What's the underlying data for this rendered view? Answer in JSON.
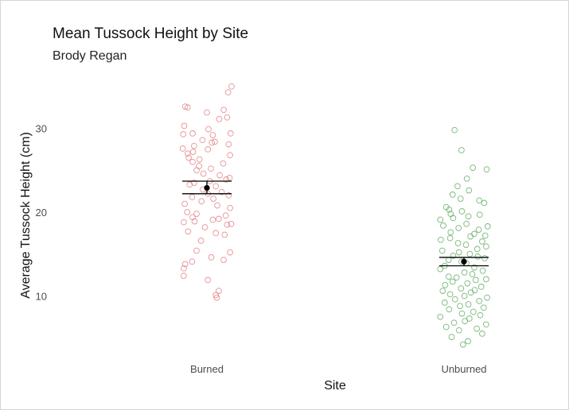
{
  "chart_data": {
    "type": "scatter",
    "title": "Mean Tussock Height by Site",
    "subtitle": "Brody Regan",
    "xlabel": "Site",
    "ylabel": "Average Tussock Height (cm)",
    "categories": [
      "Burned",
      "Unburned"
    ],
    "ylim": [
      3.5,
      36.5
    ],
    "yticks": [
      10,
      20,
      30
    ],
    "grid": false,
    "legend": "none",
    "colors": {
      "Burned": "#e07b7b",
      "Unburned": "#5aa65a",
      "summary": "#000000"
    },
    "series": [
      {
        "category": "Burned",
        "mean": 22.9,
        "ci": [
          22.2,
          23.7
        ],
        "values": [
          35.0,
          34.3,
          32.6,
          32.5,
          32.2,
          31.9,
          31.3,
          31.1,
          30.3,
          29.9,
          29.4,
          29.4,
          29.3,
          29.2,
          28.6,
          28.4,
          28.3,
          28.1,
          27.9,
          27.6,
          27.5,
          27.2,
          27.0,
          26.8,
          26.5,
          26.3,
          26.0,
          25.8,
          25.5,
          25.2,
          25.0,
          24.6,
          24.4,
          24.1,
          23.9,
          23.7,
          23.5,
          23.3,
          23.1,
          22.7,
          22.4,
          22.2,
          22.0,
          21.8,
          21.6,
          21.3,
          21.0,
          20.8,
          20.5,
          20.0,
          19.8,
          19.6,
          19.4,
          19.2,
          19.1,
          18.9,
          18.8,
          18.6,
          18.5,
          18.2,
          17.7,
          17.5,
          17.3,
          16.6,
          15.4,
          15.2,
          14.6,
          14.3,
          14.1,
          13.8,
          13.3,
          12.4,
          11.9,
          10.6,
          10.1,
          9.8
        ],
        "jitter": [
          0.5,
          0.43,
          -0.44,
          -0.39,
          0.34,
          0.0,
          0.41,
          0.25,
          -0.46,
          0.03,
          0.48,
          -0.29,
          -0.48,
          0.12,
          -0.09,
          0.16,
          0.1,
          0.44,
          -0.26,
          -0.49,
          0.02,
          -0.28,
          -0.39,
          0.47,
          -0.37,
          -0.15,
          -0.29,
          0.33,
          -0.16,
          0.08,
          -0.21,
          -0.07,
          0.26,
          0.46,
          0.39,
          0.06,
          -0.26,
          -0.35,
          0.18,
          -0.08,
          0.3,
          0.02,
          0.44,
          -0.3,
          0.13,
          -0.11,
          -0.45,
          0.21,
          0.47,
          -0.4,
          -0.21,
          0.38,
          -0.29,
          0.24,
          0.12,
          -0.25,
          -0.47,
          0.49,
          0.41,
          -0.04,
          -0.38,
          0.18,
          0.36,
          -0.12,
          -0.21,
          0.47,
          0.09,
          0.34,
          -0.3,
          -0.44,
          -0.47,
          -0.47,
          0.02,
          0.24,
          0.18,
          0.2
        ]
      },
      {
        "category": "Unburned",
        "mean": 14.1,
        "ci": [
          13.6,
          14.6
        ],
        "values": [
          29.8,
          27.4,
          25.3,
          25.1,
          24.0,
          23.1,
          22.6,
          22.1,
          21.6,
          21.4,
          21.1,
          20.6,
          20.3,
          20.1,
          19.8,
          19.7,
          19.5,
          19.3,
          19.1,
          18.6,
          18.4,
          18.3,
          18.1,
          17.9,
          17.6,
          17.4,
          17.2,
          17.1,
          16.9,
          16.7,
          16.5,
          16.3,
          16.1,
          15.9,
          15.6,
          15.4,
          15.2,
          15.0,
          14.8,
          14.7,
          14.5,
          14.3,
          14.1,
          13.9,
          13.6,
          13.4,
          13.2,
          13.0,
          12.8,
          12.6,
          12.3,
          12.2,
          12.0,
          11.9,
          11.7,
          11.5,
          11.3,
          11.1,
          10.9,
          10.7,
          10.6,
          10.4,
          10.2,
          10.0,
          9.8,
          9.6,
          9.4,
          9.2,
          9.0,
          8.8,
          8.6,
          8.4,
          8.1,
          7.9,
          7.7,
          7.5,
          7.3,
          7.0,
          6.8,
          6.6,
          6.3,
          6.1,
          5.9,
          5.5,
          5.1,
          4.6,
          4.2
        ],
        "jitter": [
          -0.19,
          -0.05,
          0.18,
          0.46,
          0.06,
          -0.13,
          0.1,
          -0.23,
          -0.07,
          0.31,
          0.41,
          -0.36,
          -0.3,
          -0.04,
          -0.27,
          0.32,
          0.09,
          -0.22,
          -0.48,
          0.05,
          -0.42,
          0.48,
          -0.11,
          0.3,
          -0.27,
          0.21,
          0.43,
          0.13,
          -0.28,
          -0.47,
          0.37,
          -0.12,
          0.04,
          0.45,
          0.27,
          -0.44,
          -0.1,
          0.12,
          -0.22,
          0.28,
          0.42,
          -0.31,
          -0.05,
          0.05,
          -0.39,
          0.21,
          -0.48,
          0.38,
          0.01,
          0.17,
          -0.31,
          -0.15,
          0.45,
          0.24,
          -0.23,
          0.07,
          -0.38,
          0.35,
          -0.06,
          0.22,
          -0.43,
          0.14,
          -0.28,
          0.01,
          0.47,
          -0.18,
          0.31,
          -0.39,
          0.09,
          -0.08,
          0.4,
          -0.3,
          0.19,
          -0.04,
          0.33,
          -0.48,
          0.11,
          0.02,
          -0.2,
          0.45,
          -0.36,
          0.26,
          -0.1,
          0.37,
          -0.25,
          0.08,
          -0.02
        ]
      }
    ]
  }
}
